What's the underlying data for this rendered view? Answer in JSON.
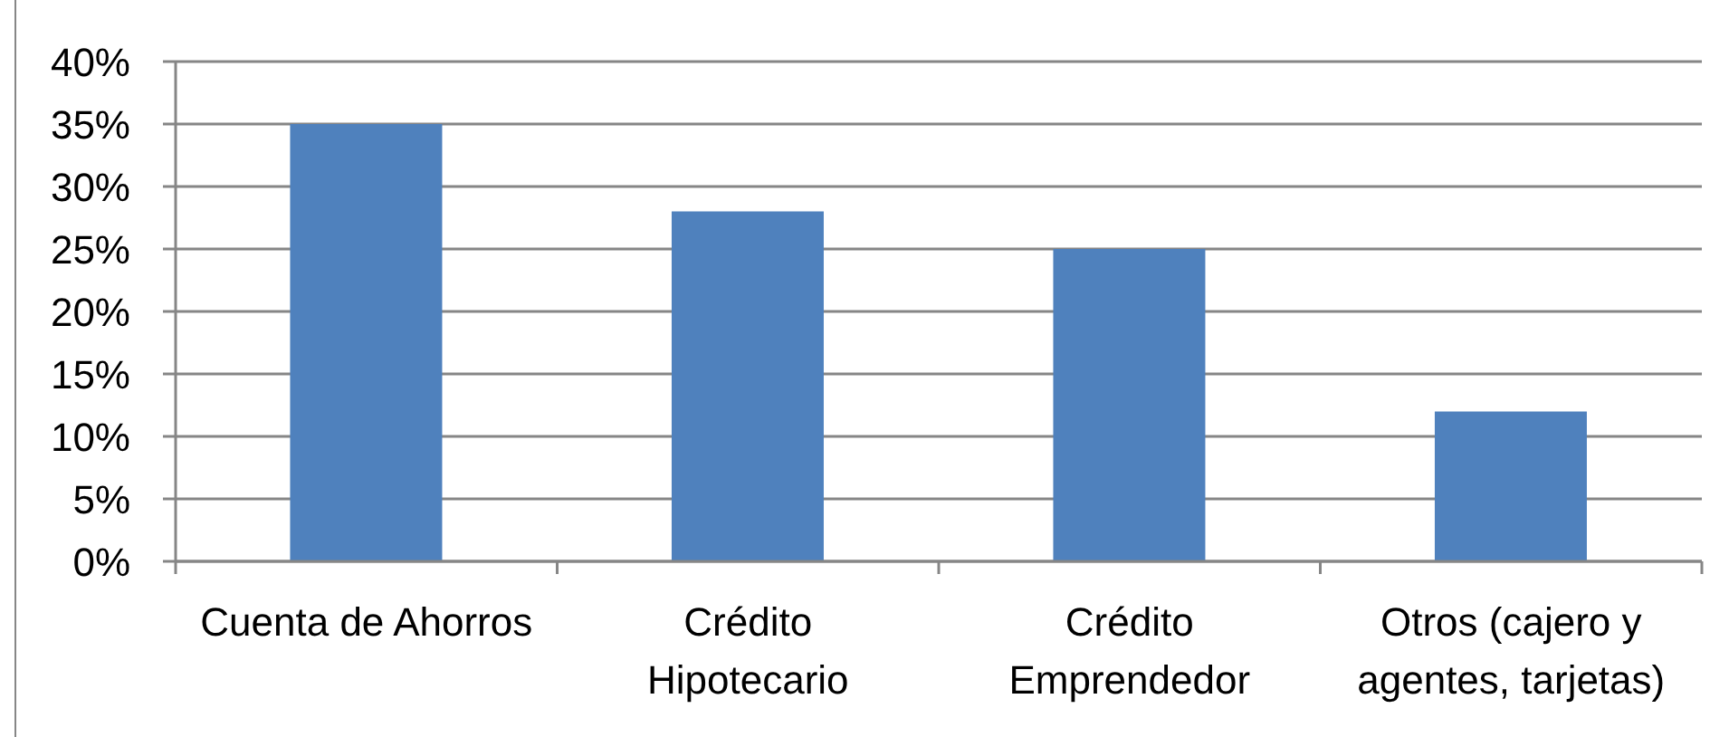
{
  "chart_data": {
    "type": "bar",
    "categories": [
      "Cuenta de Ahorros",
      "Crédito Hipotecario",
      "Crédito Emprendedor",
      "Otros (cajero y agentes, tarjetas)"
    ],
    "values": [
      35,
      28,
      25,
      12
    ],
    "color": "#4f81bd",
    "ylim": [
      0,
      40
    ],
    "yticks": [
      {
        "value": 0,
        "label": "0%"
      },
      {
        "value": 5,
        "label": "5%"
      },
      {
        "value": 10,
        "label": "10%"
      },
      {
        "value": 15,
        "label": "15%"
      },
      {
        "value": 20,
        "label": "20%"
      },
      {
        "value": 25,
        "label": "25%"
      },
      {
        "value": 30,
        "label": "30%"
      },
      {
        "value": 35,
        "label": "35%"
      },
      {
        "value": 40,
        "label": "40%"
      }
    ],
    "grid": "y"
  }
}
